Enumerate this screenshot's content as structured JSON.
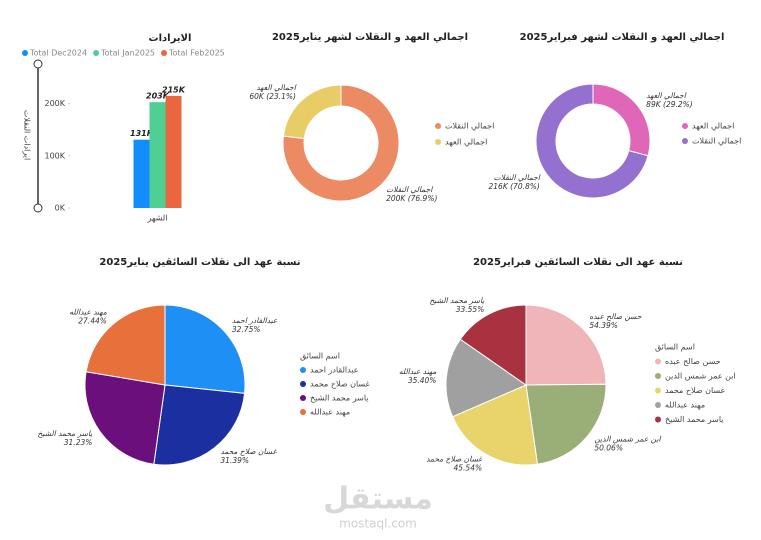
{
  "chart_data": [
    {
      "type": "bar",
      "title": "الايرادات",
      "x_label": "الشهر",
      "y_label": "ايرادات النقلات",
      "categories": [
        null
      ],
      "series": [
        {
          "name": "Total Dec2024",
          "color": "#118dff",
          "values": [
            131000
          ],
          "value_labels": [
            "131K"
          ]
        },
        {
          "name": "Total Jan2025",
          "color": "#4fcf94",
          "values": [
            203000
          ],
          "value_labels": [
            "203K"
          ]
        },
        {
          "name": "Total Feb2025",
          "color": "#e8673f",
          "values": [
            215000
          ],
          "value_labels": [
            "215K"
          ]
        }
      ],
      "ylim": [
        0,
        280000
      ],
      "yticks": [
        {
          "value": 0,
          "label": "0K"
        },
        {
          "value": 100000,
          "label": "100K"
        },
        {
          "value": 200000,
          "label": "200K"
        }
      ],
      "grid": false,
      "legend": "top-left"
    },
    {
      "type": "donut",
      "title": "اجمالي العهد و النقلات لشهر يناير2025",
      "categories": [
        "اجمالي النقلات",
        "اجمالي العهد"
      ],
      "values": [
        200000,
        60000
      ],
      "value_labels": [
        "200K (76.9%)",
        "60K (23.1%)"
      ],
      "colors": [
        "#ec8b63",
        "#e8cd66"
      ],
      "legend": "right"
    },
    {
      "type": "donut",
      "title": "اجمالي العهد و النقلات لشهر فبراير2025",
      "categories": [
        "اجمالي العهد",
        "اجمالي النقلات"
      ],
      "values": [
        89000,
        216000
      ],
      "value_labels": [
        "89K (29.2%)",
        "216K (70.8%)"
      ],
      "colors": [
        "#e066b8",
        "#9470d0"
      ],
      "legend": "right"
    },
    {
      "type": "pie",
      "title": "نسبة عهد الى نقلات السائقين يناير2025",
      "legend_title": "اسم السائق",
      "categories": [
        "عبدالقادر احمد",
        "غسان صلاح محمد",
        "ياسر محمد الشيخ",
        "مهند عبدالله"
      ],
      "values": [
        32.75,
        31.39,
        31.23,
        27.44
      ],
      "value_labels": [
        "32.75%",
        "31.39%",
        "31.23%",
        "27.44%"
      ],
      "colors": [
        "#1e8ff5",
        "#1b2fa0",
        "#6b0f7c",
        "#e8703a"
      ],
      "legend": "right"
    },
    {
      "type": "pie",
      "title": "نسبة عهد الى نقلات السائقين فبراير2025",
      "legend_title": "اسم السائق",
      "categories": [
        "حسن صالح عبده",
        "ابن عمر شمس الدين",
        "غسان صلاح محمد",
        "مهند عبدالله",
        "ياسر محمد الشيخ"
      ],
      "values": [
        54.39,
        50.06,
        45.54,
        35.4,
        33.55
      ],
      "value_labels": [
        "54.39%",
        "50.06%",
        "45.54%",
        "35.40%",
        "33.55%"
      ],
      "colors": [
        "#efb5b8",
        "#9aae78",
        "#e8d46a",
        "#a0a0a0",
        "#a83240"
      ],
      "legend": "right"
    }
  ],
  "watermark": {
    "logo": "مستقل",
    "site": "mostaql.com"
  }
}
